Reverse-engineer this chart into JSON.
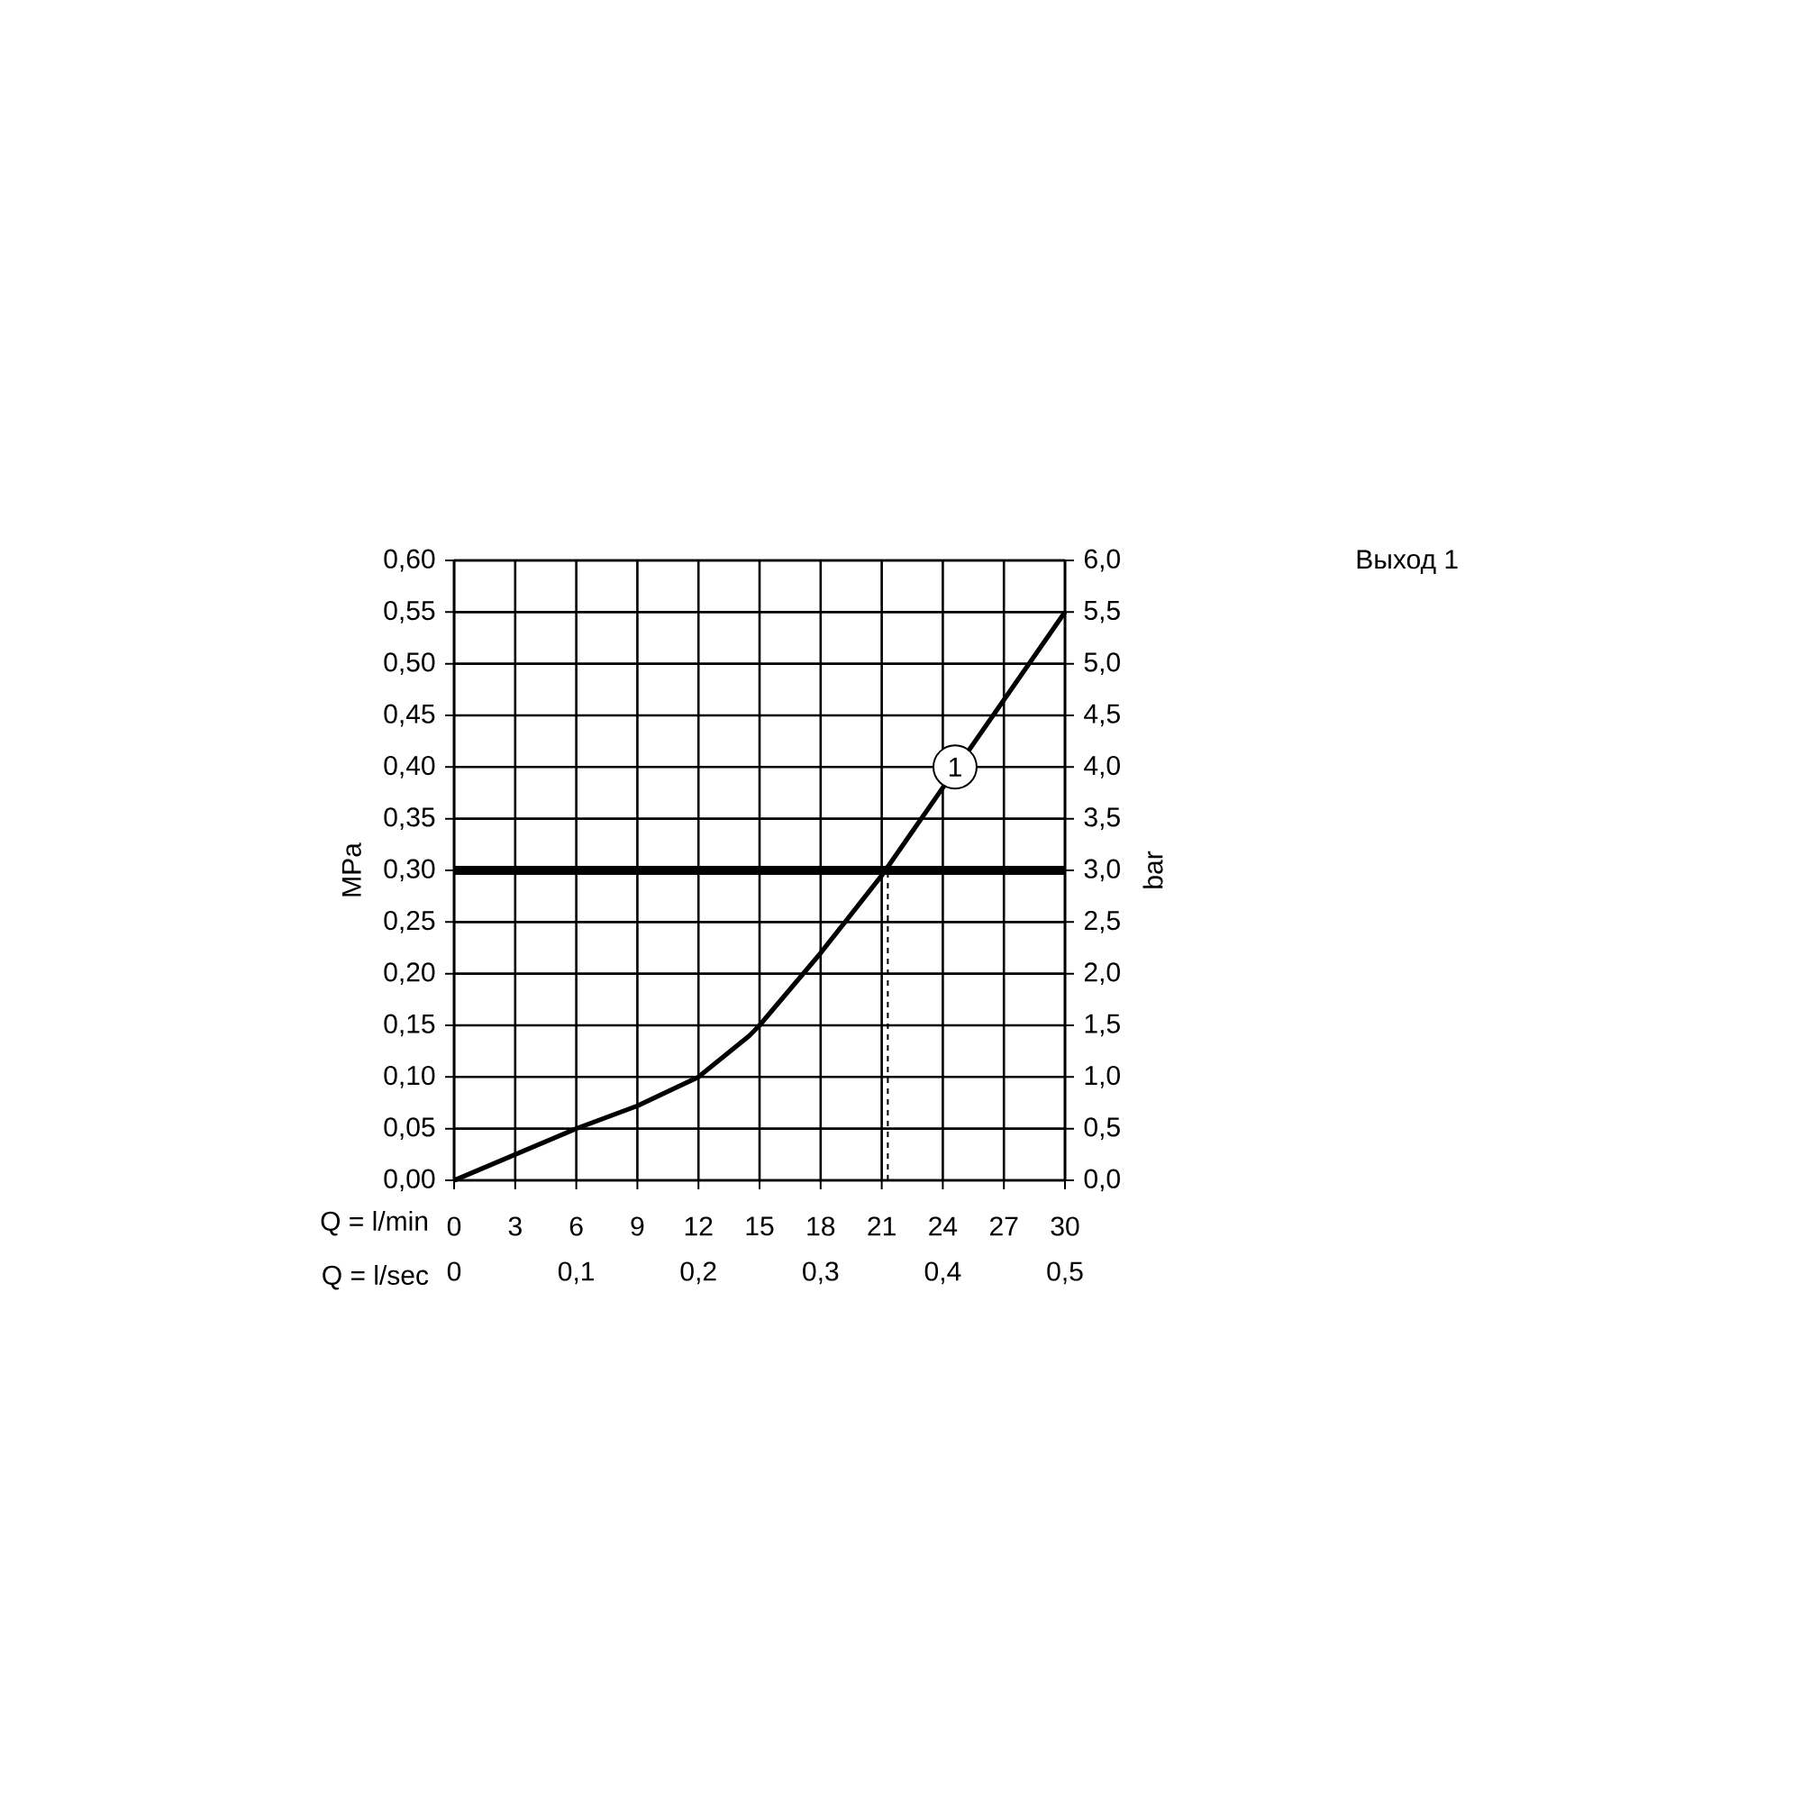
{
  "chart_data": {
    "type": "line",
    "title": "Выход 1",
    "xlabel": "Q = l/min",
    "x2label": "Q = l/sec",
    "ylabel": "MPa",
    "y2label": "bar",
    "series": [
      {
        "color": "#000000",
        "x": [
          0,
          3,
          6,
          9,
          12,
          14.5,
          15,
          18,
          21,
          24,
          27,
          30
        ],
        "values": [
          0,
          0.025,
          0.05,
          0.072,
          0.1,
          0.14,
          0.15,
          0.22,
          0.295,
          0.38,
          0.465,
          0.55
        ]
      },
      {
        "color": "#000000",
        "x": [
          21.3,
          21.3
        ],
        "values": [
          0,
          0.3
        ],
        "line_style": "dashed"
      }
    ],
    "xlim": [
      0,
      30
    ],
    "xticks": [
      0,
      3,
      6,
      9,
      12,
      15,
      18,
      21,
      24,
      27,
      30
    ],
    "x2lim": [
      0,
      0.5
    ],
    "x2ticks": [
      0,
      {
        "value": 0.1,
        "label": "0,1"
      },
      {
        "value": 0.2,
        "label": "0,2"
      },
      {
        "value": 0.3,
        "label": "0,3"
      },
      {
        "value": 0.4,
        "label": "0,4"
      },
      {
        "value": 0.5,
        "label": "0,5"
      }
    ],
    "ylim": [
      0,
      0.6
    ],
    "yticks": [
      {
        "value": 0,
        "label": "0,00"
      },
      {
        "value": 0.05,
        "label": "0,05"
      },
      {
        "value": 0.1,
        "label": "0,10"
      },
      {
        "value": 0.15,
        "label": "0,15"
      },
      {
        "value": 0.2,
        "label": "0,20"
      },
      {
        "value": 0.25,
        "label": "0,25"
      },
      {
        "value": 0.3,
        "label": "0,30"
      },
      {
        "value": 0.35,
        "label": "0,35"
      },
      {
        "value": 0.4,
        "label": "0,40"
      },
      {
        "value": 0.45,
        "label": "0,45"
      },
      {
        "value": 0.5,
        "label": "0,50"
      },
      {
        "value": 0.55,
        "label": "0,55"
      },
      {
        "value": 0.6,
        "label": "0,60"
      }
    ],
    "y2lim": [
      0,
      6
    ],
    "y2ticks": [
      {
        "value": 0,
        "label": "0,0"
      },
      {
        "value": 0.5,
        "label": "0,5"
      },
      {
        "value": 1,
        "label": "1,0"
      },
      {
        "value": 1.5,
        "label": "1,5"
      },
      {
        "value": 2,
        "label": "2,0"
      },
      {
        "value": 2.5,
        "label": "2,5"
      },
      {
        "value": 3,
        "label": "3,0"
      },
      {
        "value": 3.5,
        "label": "3,5"
      },
      {
        "value": 4,
        "label": "4,0"
      },
      {
        "value": 4.5,
        "label": "4,5"
      },
      {
        "value": 5,
        "label": "5,0"
      },
      {
        "value": 5.5,
        "label": "5,5"
      },
      {
        "value": 6,
        "label": "6,0"
      }
    ],
    "grid": true,
    "ref_lines": [
      {
        "axis": "y",
        "value": 0.3,
        "color": "#000000"
      }
    ],
    "annotations": [
      {
        "text": "1",
        "x": 24.6,
        "y": 0.4
      }
    ]
  }
}
